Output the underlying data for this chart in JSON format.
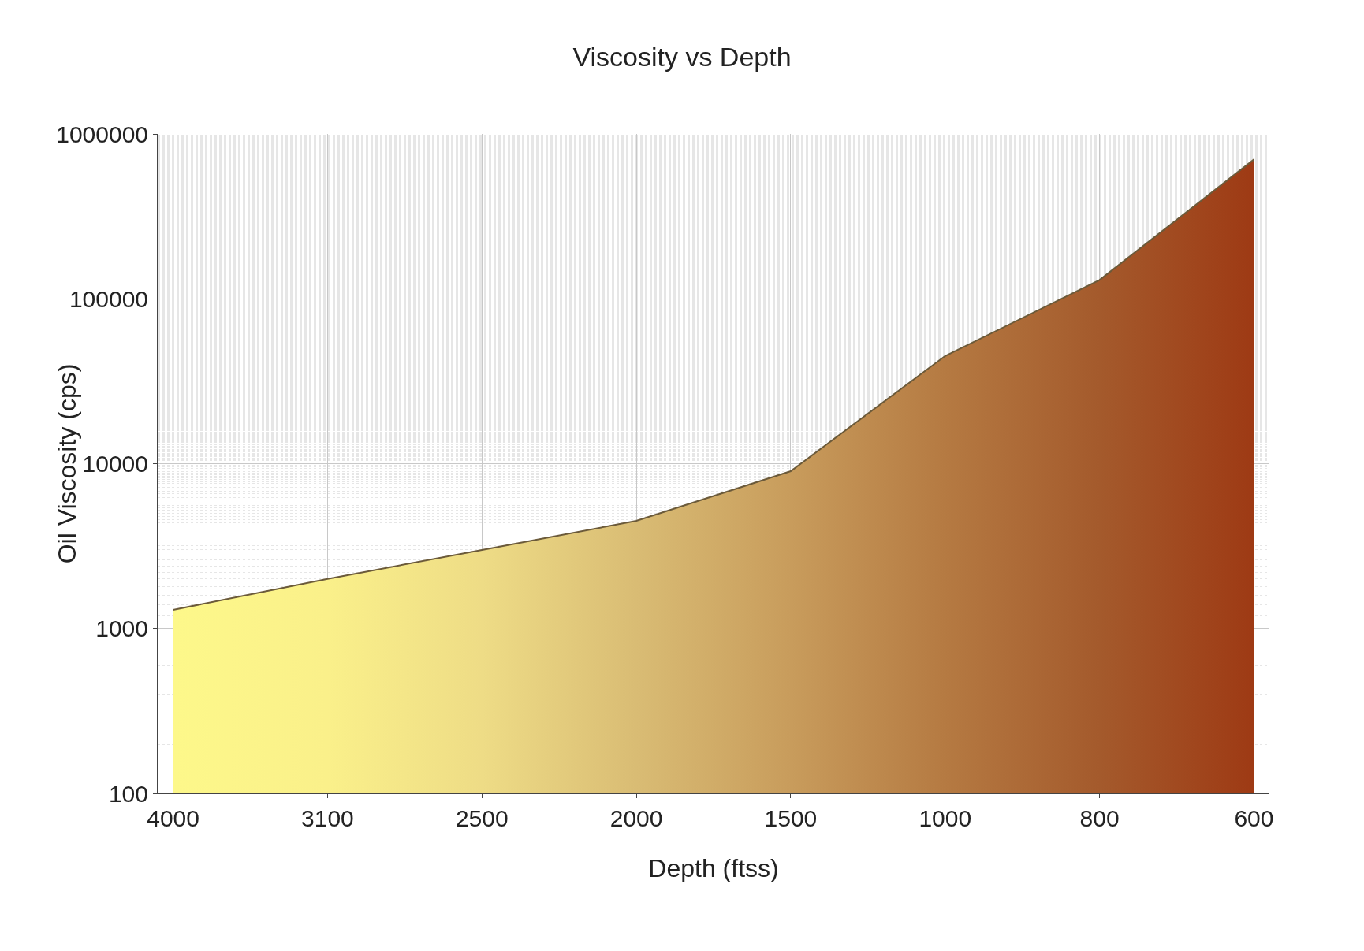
{
  "chart_data": {
    "type": "area",
    "title": "Viscosity vs Depth",
    "xlabel": "Depth (ftss)",
    "ylabel": "Oil Viscosity (cps)",
    "categories": [
      "4000",
      "3100",
      "2500",
      "2000",
      "1500",
      "1000",
      "800",
      "600"
    ],
    "series": [
      {
        "color": "#6b5a3a",
        "colors": [
          "#fdf88a",
          "#faf08a",
          "#eedc86",
          "#d9bc74",
          "#c89c5c",
          "#b57a42",
          "#a45a2c",
          "#9e3a14"
        ],
        "values": [
          1300,
          2000,
          3000,
          4500,
          9000,
          45000,
          130000,
          700000
        ]
      }
    ],
    "ylim": [
      100,
      1000000
    ],
    "yticks": [
      100,
      1000,
      10000,
      100000,
      1000000
    ],
    "log": true,
    "grid": true,
    "marker": "none",
    "line_style": "solid"
  }
}
